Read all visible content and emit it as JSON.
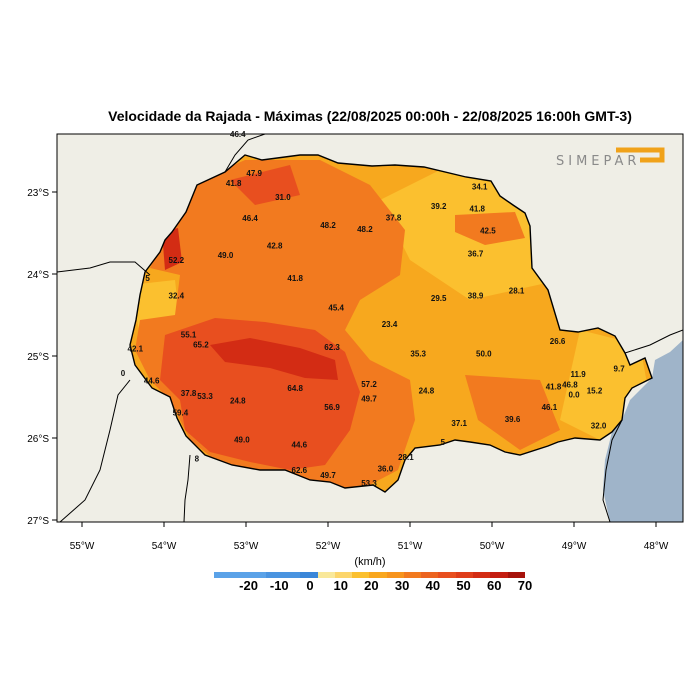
{
  "title": "Velocidade da Rajada - Máximas (22/08/2025 00:00h - 22/08/2025 16:00h GMT-3)",
  "logo_text": "SIMEPAR",
  "colors": {
    "land": "#efeee6",
    "ocean": "#9fb4c9",
    "paraná_base": "#f7a81e",
    "band_40_50": "#f27a1f",
    "band_50_60": "#e84f1f",
    "band_60_70": "#d32c14",
    "band_30_40": "#fbc02f"
  },
  "axes": {
    "x_ticks": [
      "55°W",
      "54°W",
      "53°W",
      "52°W",
      "51°W",
      "50°W",
      "49°W",
      "48°W"
    ],
    "y_ticks": [
      "23°S",
      "24°S",
      "25°S",
      "26°S",
      "27°S"
    ]
  },
  "legend": {
    "unit": "(km/h)",
    "labels": [
      "-20",
      "-10",
      "0",
      "10",
      "20",
      "30",
      "40",
      "50",
      "60",
      "70"
    ],
    "colors": [
      "#5aa2e8",
      "#5aa2e8",
      "#5aa2e8",
      "#4a94e0",
      "#4a94e0",
      "#3a86d8",
      "#f9e89a",
      "#fcd56b",
      "#fbc02f",
      "#f9a71e",
      "#f7941d",
      "#f27a1f",
      "#ec6420",
      "#e84f1f",
      "#df3d1a",
      "#d32c14",
      "#c41d10",
      "#a6120b"
    ]
  },
  "stations": [
    {
      "lon": -53.1,
      "lat": -22.29,
      "value": "46.4"
    },
    {
      "lon": -52.9,
      "lat": -22.77,
      "value": "47.9"
    },
    {
      "lon": -53.15,
      "lat": -22.89,
      "value": "41.8"
    },
    {
      "lon": -52.55,
      "lat": -23.06,
      "value": "31.0"
    },
    {
      "lon": -52.95,
      "lat": -23.32,
      "value": "46.4"
    },
    {
      "lon": -52.0,
      "lat": -23.4,
      "value": "48.2"
    },
    {
      "lon": -51.55,
      "lat": -23.45,
      "value": "48.2"
    },
    {
      "lon": -51.2,
      "lat": -23.31,
      "value": "37.8"
    },
    {
      "lon": -50.65,
      "lat": -23.17,
      "value": "39.2"
    },
    {
      "lon": -50.15,
      "lat": -22.93,
      "value": "34.1"
    },
    {
      "lon": -50.18,
      "lat": -23.2,
      "value": "41.8"
    },
    {
      "lon": -50.05,
      "lat": -23.47,
      "value": "42.5"
    },
    {
      "lon": -50.2,
      "lat": -23.75,
      "value": "36.7"
    },
    {
      "lon": -52.65,
      "lat": -23.65,
      "value": "42.8"
    },
    {
      "lon": -53.25,
      "lat": -23.77,
      "value": "49.0"
    },
    {
      "lon": -53.85,
      "lat": -23.83,
      "value": "52.2"
    },
    {
      "lon": -54.2,
      "lat": -24.05,
      "value": "5"
    },
    {
      "lon": -52.4,
      "lat": -24.05,
      "value": "41.8"
    },
    {
      "lon": -53.85,
      "lat": -24.26,
      "value": "32.4"
    },
    {
      "lon": -50.65,
      "lat": -24.29,
      "value": "29.5"
    },
    {
      "lon": -50.2,
      "lat": -24.26,
      "value": "38.9"
    },
    {
      "lon": -49.7,
      "lat": -24.2,
      "value": "28.1"
    },
    {
      "lon": -51.9,
      "lat": -24.41,
      "value": "45.4"
    },
    {
      "lon": -51.25,
      "lat": -24.61,
      "value": "23.4"
    },
    {
      "lon": -53.7,
      "lat": -24.74,
      "value": "55.1"
    },
    {
      "lon": -53.55,
      "lat": -24.86,
      "value": "65.2"
    },
    {
      "lon": -51.95,
      "lat": -24.89,
      "value": "62.3"
    },
    {
      "lon": -54.35,
      "lat": -24.91,
      "value": "42.1"
    },
    {
      "lon": -49.2,
      "lat": -24.82,
      "value": "26.6"
    },
    {
      "lon": -50.9,
      "lat": -24.97,
      "value": "35.3"
    },
    {
      "lon": -50.1,
      "lat": -24.97,
      "value": "50.0"
    },
    {
      "lon": -54.5,
      "lat": -25.21,
      "value": "0"
    },
    {
      "lon": -54.15,
      "lat": -25.3,
      "value": "44.6"
    },
    {
      "lon": -48.95,
      "lat": -25.22,
      "value": "11.9"
    },
    {
      "lon": -48.45,
      "lat": -25.15,
      "value": "9.7"
    },
    {
      "lon": -51.5,
      "lat": -25.34,
      "value": "57.2"
    },
    {
      "lon": -52.4,
      "lat": -25.39,
      "value": "64.8"
    },
    {
      "lon": -53.7,
      "lat": -25.45,
      "value": "37.8"
    },
    {
      "lon": -53.5,
      "lat": -25.49,
      "value": "53.3"
    },
    {
      "lon": -53.1,
      "lat": -25.54,
      "value": "24.8"
    },
    {
      "lon": -51.5,
      "lat": -25.52,
      "value": "49.7"
    },
    {
      "lon": -50.8,
      "lat": -25.42,
      "value": "24.8"
    },
    {
      "lon": -49.25,
      "lat": -25.37,
      "value": "41.8"
    },
    {
      "lon": -49.05,
      "lat": -25.35,
      "value": "46.8"
    },
    {
      "lon": -48.75,
      "lat": -25.42,
      "value": "15.2"
    },
    {
      "lon": -49.0,
      "lat": -25.47,
      "value": "0.0"
    },
    {
      "lon": -53.8,
      "lat": -25.69,
      "value": "59.4"
    },
    {
      "lon": -51.95,
      "lat": -25.62,
      "value": "56.9"
    },
    {
      "lon": -49.3,
      "lat": -25.62,
      "value": "46.1"
    },
    {
      "lon": -50.4,
      "lat": -25.82,
      "value": "37.1"
    },
    {
      "lon": -49.75,
      "lat": -25.77,
      "value": "39.6"
    },
    {
      "lon": -48.7,
      "lat": -25.85,
      "value": "32.0"
    },
    {
      "lon": -53.05,
      "lat": -26.02,
      "value": "49.0"
    },
    {
      "lon": -52.35,
      "lat": -26.08,
      "value": "44.6"
    },
    {
      "lon": -53.6,
      "lat": -26.25,
      "value": "8"
    },
    {
      "lon": -51.05,
      "lat": -26.23,
      "value": "28.1"
    },
    {
      "lon": -50.6,
      "lat": -26.05,
      "value": "5"
    },
    {
      "lon": -51.3,
      "lat": -26.37,
      "value": "36.0"
    },
    {
      "lon": -52.35,
      "lat": -26.39,
      "value": "62.6"
    },
    {
      "lon": -52.0,
      "lat": -26.45,
      "value": "49.7"
    },
    {
      "lon": -51.5,
      "lat": -26.55,
      "value": "53.3"
    }
  ]
}
